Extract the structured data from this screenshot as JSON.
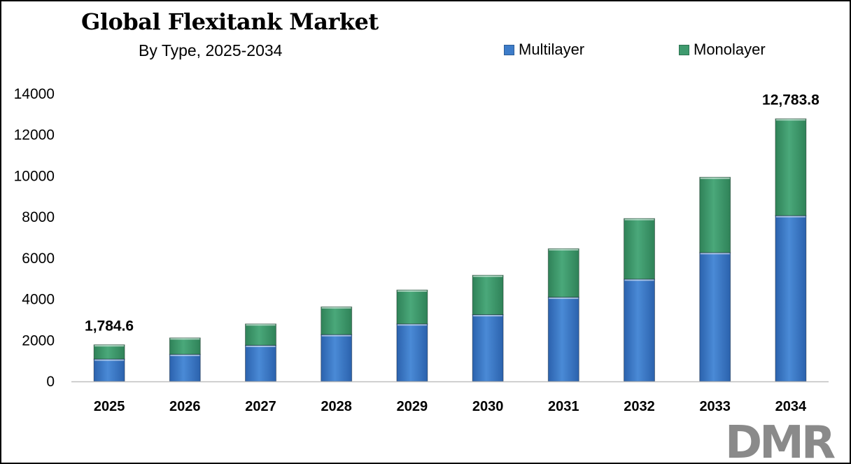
{
  "title": "Global Flexitank Market",
  "subtitle": "By Type, 2025-2034",
  "colors": {
    "multilayer": "#3d7cc9",
    "monolayer": "#3e9a6e",
    "logo_gray": "#8a8a8a",
    "logo_red": "#d2302c"
  },
  "logo": {
    "text": "DMR"
  },
  "chart_data": {
    "type": "bar",
    "stacked": true,
    "categories": [
      "2025",
      "2026",
      "2027",
      "2028",
      "2029",
      "2030",
      "2031",
      "2032",
      "2033",
      "2034"
    ],
    "series": [
      {
        "name": "Multilayer",
        "values": [
          1090,
          1320,
          1760,
          2280,
          2800,
          3250,
          4100,
          4980,
          6270,
          8070
        ]
      },
      {
        "name": "Monolayer",
        "values": [
          694.6,
          800,
          1040,
          1350,
          1650,
          1920,
          2360,
          2950,
          3670,
          4713.8
        ]
      }
    ],
    "ylim": [
      0,
      14000
    ],
    "yticks": [
      0,
      2000,
      4000,
      6000,
      8000,
      10000,
      12000,
      14000
    ],
    "annotations": [
      {
        "category": "2025",
        "text": "1,784.6"
      },
      {
        "category": "2034",
        "text": "12,783.8"
      }
    ],
    "legend": "top-right",
    "grid": false
  }
}
